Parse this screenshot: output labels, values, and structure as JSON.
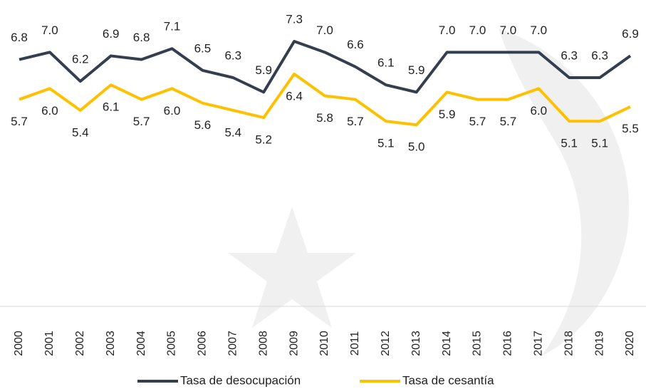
{
  "chart_data": {
    "type": "line",
    "categories": [
      "2000",
      "2001",
      "2002",
      "2003",
      "2004",
      "2005",
      "2006",
      "2007",
      "2008",
      "2009",
      "2010",
      "2011",
      "2012",
      "2013",
      "2014",
      "2015",
      "2016",
      "2017",
      "2018",
      "2019",
      "2020"
    ],
    "series": [
      {
        "name": "Tasa de desocupación",
        "color": "#333f4f",
        "values": [
          6.8,
          7.0,
          6.2,
          6.9,
          6.8,
          7.1,
          6.5,
          6.3,
          5.9,
          7.3,
          7.0,
          6.6,
          6.1,
          5.9,
          7.0,
          7.0,
          7.0,
          7.0,
          6.3,
          6.3,
          6.9
        ],
        "value_labels": [
          "6.8",
          "7.0",
          "6.2",
          "6.9",
          "6.8",
          "7.1",
          "6.5",
          "6.3",
          "5.9",
          "7.3",
          "7.0",
          "6.6",
          "6.1",
          "5.9",
          "7.0",
          "7.0",
          "7.0",
          "7.0",
          "6.3",
          "6.3",
          "6.9"
        ]
      },
      {
        "name": "Tasa de cesantía",
        "color": "#ffc000",
        "values": [
          5.7,
          6.0,
          5.4,
          6.1,
          5.7,
          6.0,
          5.6,
          5.4,
          5.2,
          6.4,
          5.8,
          5.7,
          5.1,
          5.0,
          5.9,
          5.7,
          5.7,
          6.0,
          5.1,
          5.1,
          5.5
        ],
        "value_labels": [
          "5.7",
          "6.0",
          "5.4",
          "6.1",
          "5.7",
          "6.0",
          "5.6",
          "5.4",
          "5.2",
          "6.4",
          "5.8",
          "5.7",
          "5.1",
          "5.0",
          "5.9",
          "5.7",
          "5.7",
          "6.0",
          "5.1",
          "5.1",
          "5.5"
        ]
      }
    ],
    "ylim": [
      0,
      8.4
    ],
    "grid": false,
    "legend": "bottom"
  }
}
